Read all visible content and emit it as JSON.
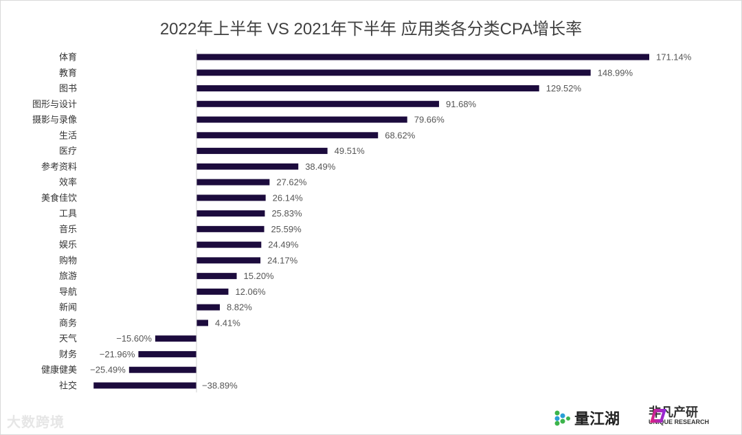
{
  "chart_data": {
    "type": "bar",
    "orientation": "horizontal",
    "title": "2022年上半年 VS 2021年下半年 应用类各分类CPA增长率",
    "categories": [
      "体育",
      "教育",
      "图书",
      "图形与设计",
      "摄影与录像",
      "生活",
      "医疗",
      "参考资料",
      "效率",
      "美食佳饮",
      "工具",
      "音乐",
      "娱乐",
      "购物",
      "旅游",
      "导航",
      "新闻",
      "商务",
      "天气",
      "财务",
      "健康健美",
      "社交"
    ],
    "values": [
      171.14,
      148.99,
      129.52,
      91.68,
      79.66,
      68.62,
      49.51,
      38.49,
      27.62,
      26.14,
      25.83,
      25.59,
      24.49,
      24.17,
      15.2,
      12.06,
      8.82,
      4.41,
      -15.6,
      -21.96,
      -25.49,
      -38.89
    ],
    "labels": [
      "171.14%",
      "148.99%",
      "129.52%",
      "91.68%",
      "79.66%",
      "68.62%",
      "49.51%",
      "38.49%",
      "27.62%",
      "26.14%",
      "25.83%",
      "25.59%",
      "24.49%",
      "24.17%",
      "15.20%",
      "12.06%",
      "8.82%",
      "4.41%",
      "−15.60%",
      "−21.96%",
      "−25.49%",
      "−38.89%"
    ],
    "unit": "%",
    "grid": false,
    "legend": "none",
    "bar_color": "#1c0b3d"
  },
  "watermark": "大数跨境",
  "logos": {
    "left": "量江湖",
    "right_cn": "非凡产研",
    "right_en": "UNIQUE RESEARCH"
  }
}
